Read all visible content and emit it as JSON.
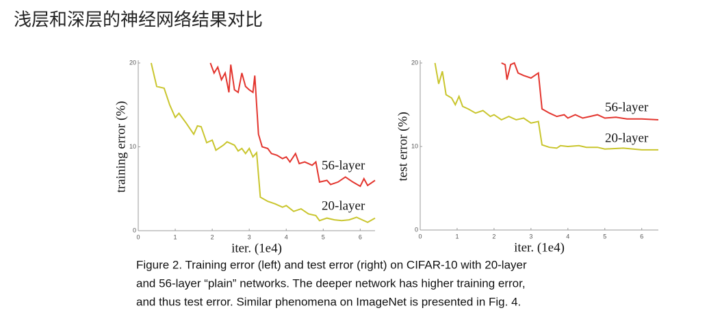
{
  "slide_title": "浅层和深层的神经网络结果对比",
  "caption": [
    "Figure 2. Training error (left) and test error (right) on CIFAR-10 with 20-layer",
    "and 56-layer “plain” networks. The deeper network has higher training error,",
    "and thus test error. Similar phenomena on ImageNet is presented in Fig. 4."
  ],
  "chart_data": [
    {
      "type": "line",
      "xlabel": "iter. (1e4)",
      "ylabel": "training error (%)",
      "xlim": [
        0,
        6.4
      ],
      "xticks": [
        0,
        1,
        2,
        3,
        4,
        5,
        6
      ],
      "ylim": [
        0,
        20
      ],
      "yticks": [
        0,
        10,
        20
      ],
      "series": [
        {
          "name": "56-layer",
          "color": "#e3342d",
          "x": [
            1.95,
            2.05,
            2.15,
            2.25,
            2.35,
            2.45,
            2.5,
            2.6,
            2.7,
            2.8,
            2.9,
            3.0,
            3.1,
            3.15,
            3.25,
            3.35,
            3.5,
            3.6,
            3.75,
            3.9,
            4.0,
            4.1,
            4.25,
            4.35,
            4.5,
            4.7,
            4.8,
            4.9,
            5.1,
            5.2,
            5.4,
            5.6,
            5.8,
            6.0,
            6.1,
            6.2,
            6.4
          ],
          "values": [
            20,
            18.8,
            19.5,
            18,
            18.8,
            16.5,
            19.8,
            16.8,
            16.5,
            18.8,
            17.2,
            16.8,
            16.5,
            18.5,
            11.5,
            10,
            9.8,
            9.2,
            9,
            8.6,
            8.8,
            8.2,
            9.2,
            8,
            8.2,
            7.8,
            8.2,
            5.8,
            6.0,
            5.5,
            5.8,
            6.4,
            5.8,
            5.3,
            6.2,
            5.4,
            6.0
          ]
        },
        {
          "name": "20-layer",
          "color": "#c9c52c",
          "x": [
            0.35,
            0.5,
            0.7,
            0.85,
            1.0,
            1.1,
            1.3,
            1.5,
            1.6,
            1.7,
            1.85,
            2.0,
            2.1,
            2.3,
            2.4,
            2.6,
            2.7,
            2.8,
            2.9,
            3.0,
            3.1,
            3.2,
            3.3,
            3.5,
            3.7,
            3.9,
            4.0,
            4.2,
            4.4,
            4.6,
            4.8,
            4.9,
            5.1,
            5.3,
            5.5,
            5.7,
            5.9,
            6.0,
            6.2,
            6.4
          ],
          "values": [
            20,
            17.2,
            17,
            15,
            13.5,
            14,
            12.8,
            11.5,
            12.5,
            12.4,
            10.5,
            10.8,
            9.6,
            10.2,
            10.6,
            10.2,
            9.5,
            9.8,
            9.2,
            9.8,
            8.8,
            9.3,
            4.0,
            3.5,
            3.2,
            2.8,
            3.0,
            2.3,
            2.6,
            2.0,
            1.8,
            1.2,
            1.5,
            1.3,
            1.2,
            1.3,
            1.6,
            1.4,
            1.0,
            1.5
          ]
        }
      ]
    },
    {
      "type": "line",
      "xlabel": "iter. (1e4)",
      "ylabel": "test error (%)",
      "xlim": [
        0,
        6.45
      ],
      "xticks": [
        0,
        1,
        2,
        3,
        4,
        5,
        6
      ],
      "ylim": [
        0,
        20
      ],
      "yticks": [
        0,
        10,
        20
      ],
      "series": [
        {
          "name": "56-layer",
          "color": "#e3342d",
          "x": [
            2.2,
            2.3,
            2.35,
            2.45,
            2.55,
            2.65,
            2.8,
            3.0,
            3.2,
            3.3,
            3.5,
            3.7,
            3.9,
            4.0,
            4.2,
            4.4,
            4.6,
            4.8,
            5.0,
            5.3,
            5.6,
            6.0,
            6.45
          ],
          "values": [
            20,
            19.8,
            18,
            19.8,
            20,
            18.8,
            18.5,
            18.2,
            18.8,
            14.5,
            14,
            13.6,
            13.8,
            13.4,
            13.8,
            13.4,
            13.6,
            13.8,
            13.4,
            13.5,
            13.3,
            13.3,
            13.2
          ]
        },
        {
          "name": "20-layer",
          "color": "#c9c52c",
          "x": [
            0.4,
            0.5,
            0.6,
            0.7,
            0.85,
            0.95,
            1.05,
            1.15,
            1.3,
            1.5,
            1.7,
            1.9,
            2.0,
            2.2,
            2.4,
            2.6,
            2.8,
            3.0,
            3.2,
            3.3,
            3.5,
            3.7,
            3.8,
            4.0,
            4.3,
            4.5,
            4.8,
            5.0,
            5.5,
            6.0,
            6.45
          ],
          "values": [
            20,
            17.5,
            19,
            16.2,
            15.8,
            15,
            16,
            14.8,
            14.5,
            14,
            14.3,
            13.6,
            13.8,
            13.2,
            13.6,
            13.2,
            13.4,
            12.8,
            13,
            10.2,
            9.9,
            9.8,
            10.1,
            10,
            10.1,
            9.9,
            9.9,
            9.7,
            9.8,
            9.6,
            9.6
          ]
        }
      ]
    }
  ]
}
